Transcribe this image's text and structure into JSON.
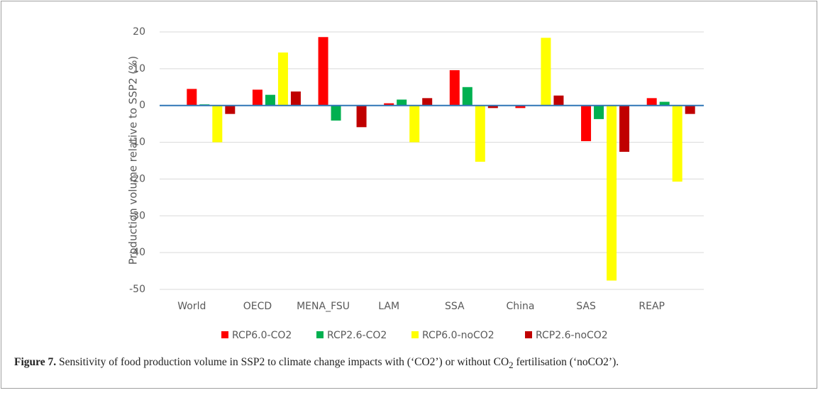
{
  "chart_data": {
    "type": "bar",
    "ylabel": "Production volume relative to SSP2 (%)",
    "categories": [
      "World",
      "OECD",
      "MENA_FSU",
      "LAM",
      "SSA",
      "China",
      "SAS",
      "REAP"
    ],
    "series": [
      {
        "name": "RCP6.0-CO2",
        "color": "#ff0000",
        "values": [
          4.5,
          4.3,
          18.6,
          0.6,
          9.6,
          -0.7,
          -9.7,
          2.0
        ]
      },
      {
        "name": "RCP2.6-CO2",
        "color": "#00b050",
        "values": [
          0.3,
          2.9,
          -4.1,
          1.6,
          5.0,
          0,
          -3.7,
          1.0
        ]
      },
      {
        "name": "RCP6.0-noCO2",
        "color": "#ffff00",
        "values": [
          -10,
          14.4,
          0,
          -10,
          -15.3,
          18.4,
          -47.6,
          -20.7
        ]
      },
      {
        "name": "RCP2.6-noCO2",
        "color": "#c00000",
        "values": [
          -2.3,
          3.8,
          -5.9,
          2.0,
          -0.7,
          2.7,
          -12.6,
          -2.3
        ]
      }
    ],
    "ylim": [
      -50,
      20
    ],
    "yticks": [
      -50,
      -40,
      -30,
      -20,
      -10,
      0,
      10,
      20
    ],
    "grid": true,
    "zero_line_color": "#2e75b6"
  },
  "caption": {
    "label": "Figure 7.",
    "text": "Sensitivity of food production volume in SSP2 to climate change impacts with (‘CO2’) or without CO",
    "subscript": "2",
    "text_after": " fertilisation (‘noCO2’)."
  }
}
